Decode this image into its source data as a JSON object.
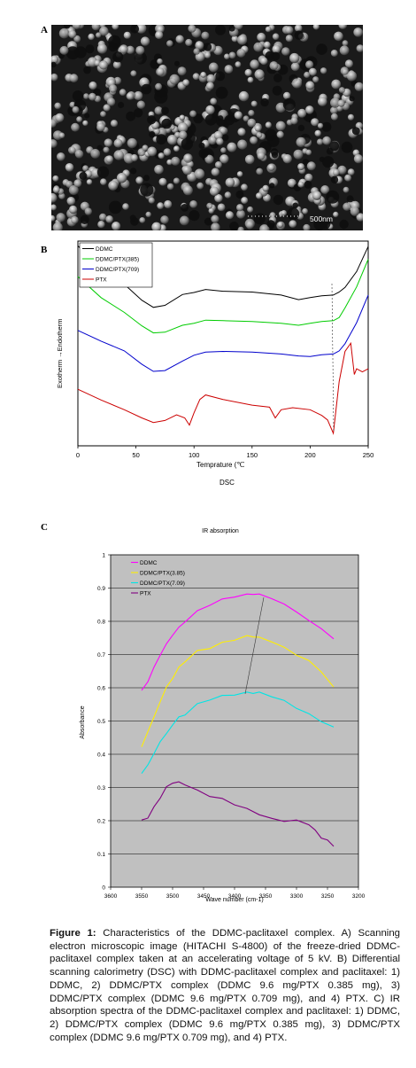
{
  "panels": {
    "a": {
      "letter": "A",
      "scale_label": "500nm"
    },
    "b": {
      "letter": "B"
    },
    "c": {
      "letter": "C"
    }
  },
  "chart_data": [
    {
      "type": "line",
      "panel": "B",
      "title": "",
      "xlabel": "Temprature (℃",
      "ylabel": "Exotherm  →Endotherm",
      "below_label": "DSC",
      "xlim": [
        0,
        250
      ],
      "xticks": [
        0,
        50,
        100,
        150,
        200,
        250
      ],
      "legend_position": "top-left",
      "series": [
        {
          "name": "DDMC",
          "color": "#000000",
          "x": [
            0,
            20,
            40,
            55,
            65,
            75,
            90,
            100,
            110,
            125,
            150,
            175,
            190,
            200,
            210,
            220,
            225,
            230,
            240,
            250
          ],
          "y": [
            98,
            90,
            83,
            77,
            74,
            75,
            79,
            80,
            81,
            80.5,
            80,
            79,
            77,
            78,
            78.5,
            79,
            80,
            82,
            88,
            98
          ]
        },
        {
          "name": "DDMC/PTX(385)",
          "color": "#00cc00",
          "x": [
            0,
            20,
            40,
            55,
            65,
            75,
            90,
            100,
            110,
            125,
            150,
            175,
            190,
            200,
            210,
            220,
            225,
            230,
            240,
            250
          ],
          "y": [
            86,
            78,
            72,
            67,
            64,
            64.5,
            67,
            68,
            69,
            69,
            68.5,
            68,
            67,
            68,
            68.5,
            69,
            70,
            74,
            82,
            93
          ]
        },
        {
          "name": "DDMC/PTX(709)",
          "color": "#0000cc",
          "x": [
            0,
            20,
            40,
            55,
            65,
            75,
            90,
            100,
            110,
            125,
            150,
            175,
            190,
            200,
            210,
            220,
            225,
            230,
            240,
            250
          ],
          "y": [
            65,
            61,
            57,
            52,
            49,
            49.5,
            53,
            55.5,
            56.5,
            57,
            56.5,
            56,
            55,
            55,
            55.5,
            56,
            57,
            60,
            68,
            79
          ]
        },
        {
          "name": "PTX",
          "color": "#cc0000",
          "x": [
            0,
            20,
            40,
            55,
            65,
            75,
            85,
            92,
            96,
            100,
            105,
            110,
            125,
            150,
            165,
            170,
            175,
            185,
            200,
            210,
            215,
            220,
            225,
            230,
            235,
            238,
            240,
            245,
            250
          ],
          "y": [
            42,
            38,
            34,
            31,
            29,
            30,
            32,
            31,
            28,
            33,
            38,
            40,
            38,
            36,
            35,
            31,
            34,
            35,
            34,
            32,
            30,
            25,
            45,
            57,
            60,
            48,
            50,
            49,
            50
          ]
        }
      ]
    },
    {
      "type": "line",
      "panel": "C",
      "title": "IR absorption",
      "xlabel": "Wave number (cm-1)",
      "ylabel": "Absorbance",
      "xlim": [
        3600,
        3200
      ],
      "xticks": [
        3600,
        3550,
        3500,
        3450,
        3400,
        3350,
        3300,
        3250,
        3200
      ],
      "ylim": [
        0,
        1
      ],
      "yticks": [
        "0",
        "0.1",
        "0.2",
        "0.3",
        "0.4",
        "0.5",
        "0.6",
        "0.7",
        "0.8",
        "0.9",
        "1"
      ],
      "grid": true,
      "legend_position": "top-left",
      "series": [
        {
          "name": "DDMC",
          "color": "#ff00ff",
          "x": [
            3550,
            3540,
            3530,
            3520,
            3510,
            3500,
            3490,
            3480,
            3460,
            3440,
            3420,
            3400,
            3380,
            3370,
            3360,
            3340,
            3320,
            3300,
            3280,
            3260,
            3240
          ],
          "y": [
            0.59,
            0.62,
            0.66,
            0.7,
            0.73,
            0.76,
            0.78,
            0.8,
            0.83,
            0.85,
            0.865,
            0.875,
            0.88,
            0.883,
            0.88,
            0.87,
            0.85,
            0.83,
            0.8,
            0.78,
            0.745
          ]
        },
        {
          "name": "DDMC/PTX(3.85)",
          "color": "#ffee00",
          "x": [
            3550,
            3540,
            3530,
            3520,
            3510,
            3500,
            3490,
            3480,
            3460,
            3440,
            3420,
            3400,
            3380,
            3370,
            3360,
            3340,
            3320,
            3300,
            3280,
            3260,
            3240
          ],
          "y": [
            0.42,
            0.47,
            0.51,
            0.56,
            0.6,
            0.63,
            0.66,
            0.68,
            0.71,
            0.72,
            0.735,
            0.745,
            0.755,
            0.755,
            0.75,
            0.74,
            0.72,
            0.7,
            0.68,
            0.65,
            0.6
          ]
        },
        {
          "name": "DDMC/PTX(7.09)",
          "color": "#00e5e5",
          "x": [
            3550,
            3540,
            3530,
            3520,
            3510,
            3500,
            3490,
            3480,
            3460,
            3440,
            3420,
            3400,
            3380,
            3370,
            3360,
            3340,
            3320,
            3300,
            3280,
            3260,
            3240
          ],
          "y": [
            0.34,
            0.37,
            0.4,
            0.44,
            0.46,
            0.49,
            0.51,
            0.52,
            0.55,
            0.565,
            0.575,
            0.58,
            0.585,
            0.585,
            0.585,
            0.575,
            0.56,
            0.54,
            0.52,
            0.5,
            0.48
          ]
        },
        {
          "name": "PTX",
          "color": "#800080",
          "x": [
            3550,
            3540,
            3530,
            3520,
            3510,
            3500,
            3490,
            3480,
            3460,
            3440,
            3420,
            3400,
            3380,
            3360,
            3340,
            3320,
            3300,
            3280,
            3270,
            3260,
            3250,
            3240
          ],
          "y": [
            0.2,
            0.21,
            0.24,
            0.27,
            0.3,
            0.315,
            0.315,
            0.31,
            0.29,
            0.275,
            0.265,
            0.25,
            0.235,
            0.22,
            0.205,
            0.2,
            0.2,
            0.19,
            0.17,
            0.15,
            0.14,
            0.125
          ]
        }
      ]
    }
  ],
  "caption": {
    "label": "Figure 1:",
    "text": "Characteristics of the DDMC-paclitaxel complex. A) Scanning electron microscopic image (HITACHI S-4800) of the freeze-dried DDMC-paclitaxel complex taken at an accelerating voltage of 5 kV. B) Differential scanning calorimetry (DSC) with DDMC-paclitaxel complex and paclitaxel: 1) DDMC, 2) DDMC/PTX complex (DDMC 9.6 mg/PTX 0.385 mg), 3) DDMC/PTX complex (DDMC 9.6 mg/PTX 0.709 mg), and 4) PTX. C) IR absorption spectra of the DDMC-paclitaxel complex and paclitaxel: 1) DDMC, 2) DDMC/PTX complex (DDMC 9.6 mg/PTX 0.385 mg), 3) DDMC/PTX complex (DDMC 9.6 mg/PTX 0.709 mg), and 4) PTX."
  }
}
